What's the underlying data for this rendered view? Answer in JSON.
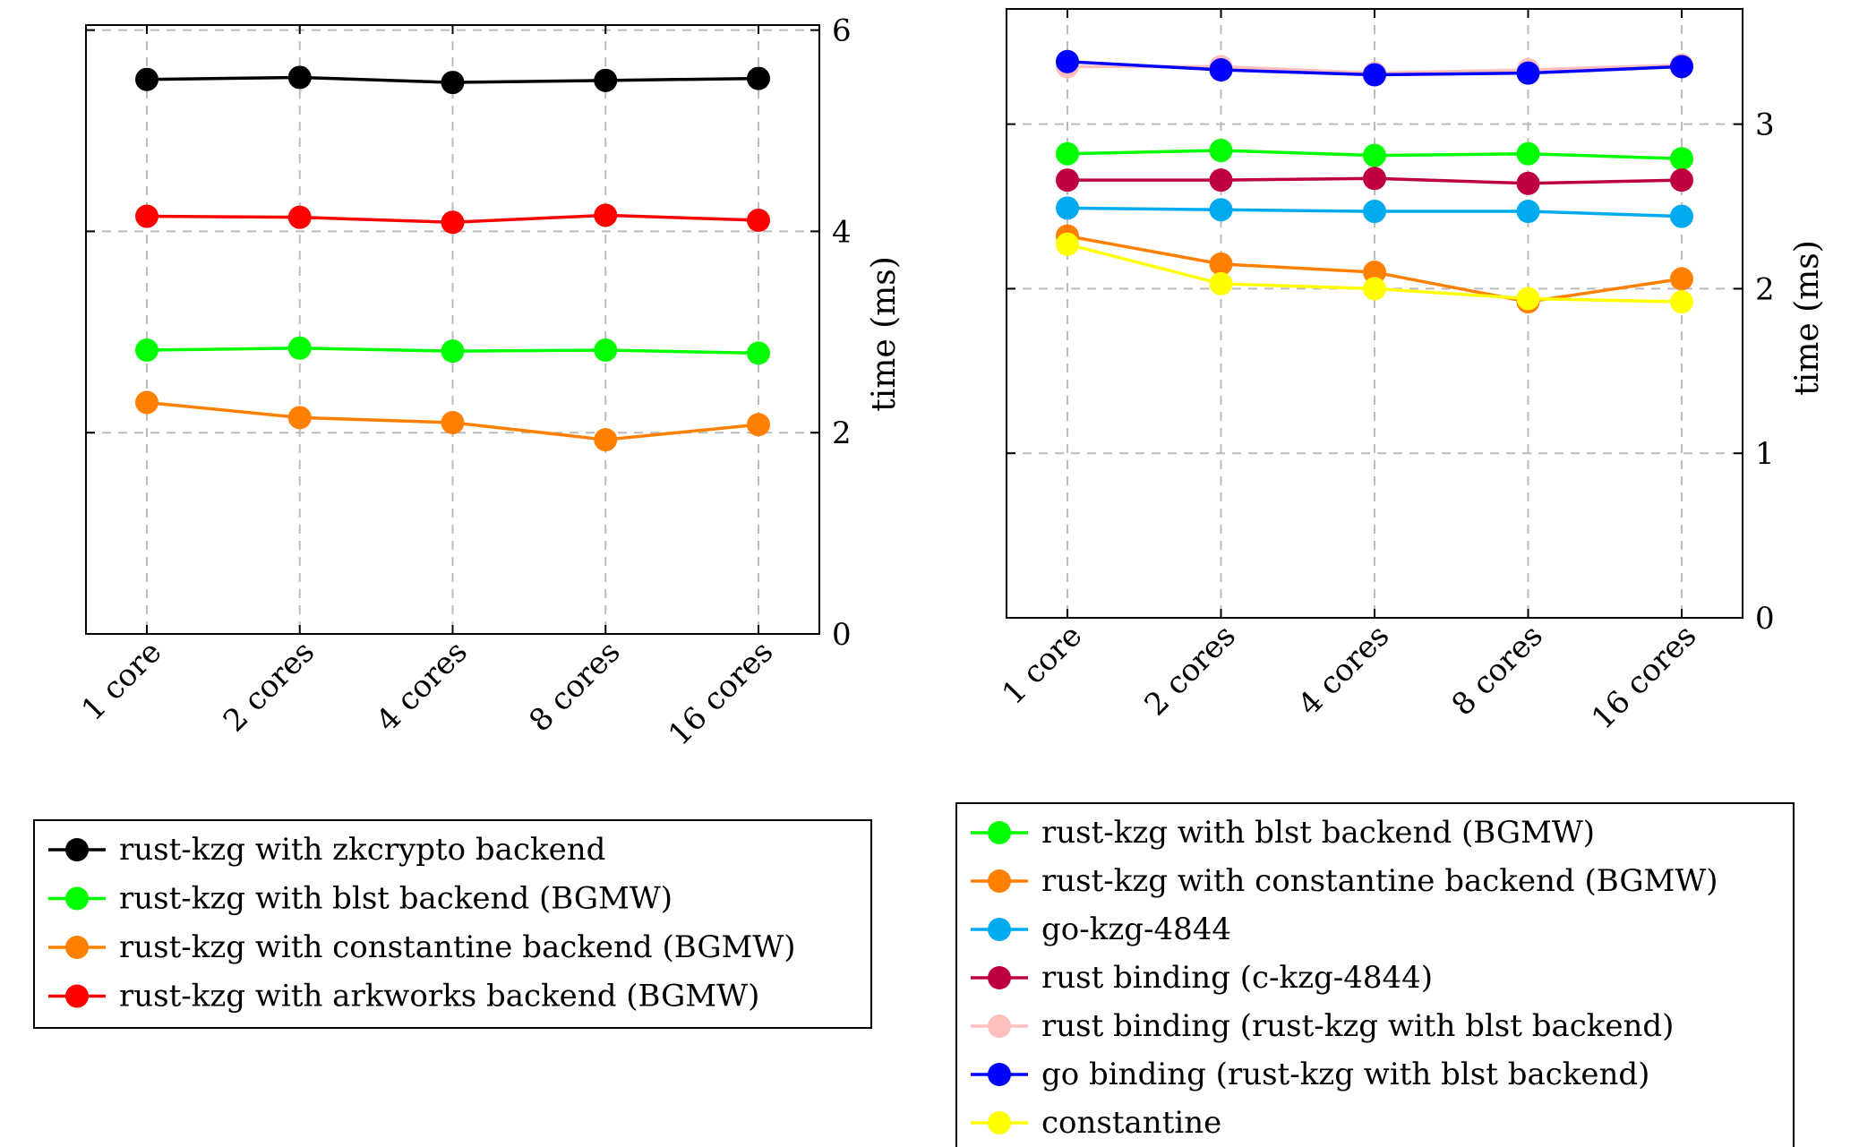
{
  "chart_data": [
    {
      "type": "line",
      "categories": [
        "1 core",
        "2 cores",
        "4 cores",
        "8 cores",
        "16 cores"
      ],
      "ylabel": "time (ms)",
      "ylim": [
        0,
        6.05
      ],
      "yticks": [
        0,
        2,
        4,
        6
      ],
      "grid": true,
      "y_axis_side": "right",
      "legend_position": "below",
      "series": [
        {
          "name": "rust-kzg with zkcrypto backend",
          "color": "#000000",
          "values": [
            5.51,
            5.53,
            5.48,
            5.5,
            5.52
          ]
        },
        {
          "name": "rust-kzg with blst backend (BGMW)",
          "color": "#00ff00",
          "values": [
            2.82,
            2.84,
            2.81,
            2.82,
            2.79
          ]
        },
        {
          "name": "rust-kzg with constantine backend (BGMW)",
          "color": "#ff8000",
          "values": [
            2.3,
            2.15,
            2.1,
            1.93,
            2.08
          ]
        },
        {
          "name": "rust-kzg with arkworks backend (BGMW)",
          "color": "#ff0000",
          "values": [
            4.15,
            4.14,
            4.09,
            4.16,
            4.11
          ]
        }
      ]
    },
    {
      "type": "line",
      "categories": [
        "1 core",
        "2 cores",
        "4 cores",
        "8 cores",
        "16 cores"
      ],
      "ylabel": "time (ms)",
      "ylim": [
        0,
        3.7
      ],
      "yticks": [
        0,
        1,
        2,
        3
      ],
      "grid": true,
      "y_axis_side": "right",
      "legend_position": "below",
      "series": [
        {
          "name": "rust-kzg with blst backend (BGMW)",
          "color": "#00ff00",
          "values": [
            2.82,
            2.84,
            2.81,
            2.82,
            2.79
          ]
        },
        {
          "name": "rust-kzg with constantine backend (BGMW)",
          "color": "#ff8000",
          "values": [
            2.32,
            2.15,
            2.1,
            1.92,
            2.06
          ]
        },
        {
          "name": "go-kzg-4844",
          "color": "#00aaee",
          "values": [
            2.49,
            2.48,
            2.47,
            2.47,
            2.44
          ]
        },
        {
          "name": "rust binding (c-kzg-4844)",
          "color": "#bf0040",
          "values": [
            2.66,
            2.66,
            2.67,
            2.64,
            2.66
          ]
        },
        {
          "name": "rust binding (rust-kzg with blst backend)",
          "color": "#ffbfbf",
          "values": [
            3.35,
            3.35,
            3.31,
            3.33,
            3.36
          ]
        },
        {
          "name": "go binding (rust-kzg with blst backend)",
          "color": "#0000ff",
          "values": [
            3.38,
            3.33,
            3.3,
            3.31,
            3.35
          ]
        },
        {
          "name": "constantine",
          "color": "#ffff00",
          "values": [
            2.27,
            2.03,
            2.0,
            1.94,
            1.92
          ]
        }
      ]
    }
  ]
}
